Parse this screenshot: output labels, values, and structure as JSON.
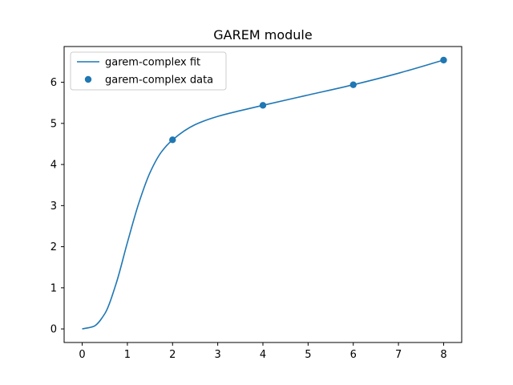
{
  "chart_data": {
    "type": "line",
    "title": "GAREM module",
    "xlabel": "",
    "ylabel": "",
    "xlim": [
      -0.4,
      8.4
    ],
    "ylim": [
      -0.33,
      6.87
    ],
    "x_ticks": [
      0,
      1,
      2,
      3,
      4,
      5,
      6,
      7,
      8
    ],
    "y_ticks": [
      0,
      1,
      2,
      3,
      4,
      5,
      6
    ],
    "grid": false,
    "legend_position": "upper left",
    "colors": {
      "series": "#1f77b4"
    },
    "series": [
      {
        "name": "garem-complex fit",
        "kind": "line",
        "x": [
          0,
          0.25,
          0.5,
          0.75,
          1.0,
          1.25,
          1.5,
          1.75,
          2.0,
          2.5,
          3.0,
          3.5,
          4.0,
          5.0,
          6.0,
          7.0,
          8.0
        ],
        "y": [
          0.0,
          0.06,
          0.37,
          1.1,
          2.1,
          3.05,
          3.8,
          4.3,
          4.6,
          4.97,
          5.17,
          5.31,
          5.44,
          5.69,
          5.94,
          6.22,
          6.54
        ]
      },
      {
        "name": "garem-complex data",
        "kind": "scatter",
        "x": [
          2,
          4,
          6,
          8
        ],
        "y": [
          4.6,
          5.44,
          5.94,
          6.54
        ]
      }
    ]
  }
}
